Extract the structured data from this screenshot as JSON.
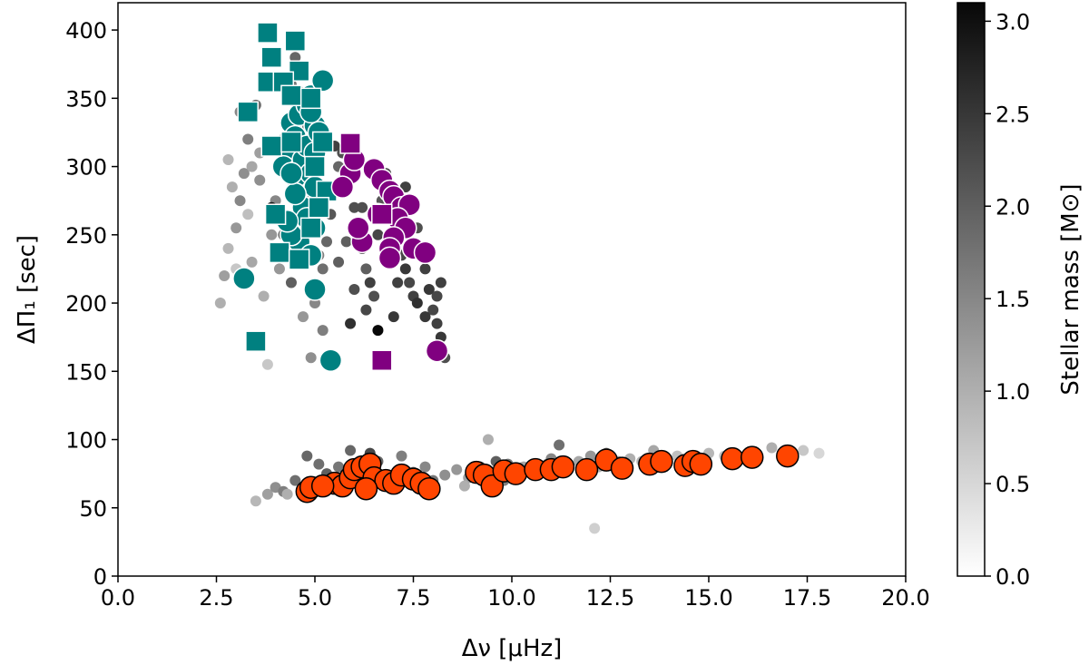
{
  "chart_data": {
    "type": "scatter",
    "xlabel": "Δν [μHz]",
    "ylabel": "ΔΠ₁ [sec]",
    "xlim": [
      0,
      20
    ],
    "ylim": [
      0,
      420
    ],
    "xticks": [
      0.0,
      2.5,
      5.0,
      7.5,
      10.0,
      12.5,
      15.0,
      17.5,
      20.0
    ],
    "xtick_labels": [
      "0.0",
      "2.5",
      "5.0",
      "7.5",
      "10.0",
      "12.5",
      "15.0",
      "17.5",
      "20.0"
    ],
    "yticks": [
      0,
      50,
      100,
      150,
      200,
      250,
      300,
      350,
      400
    ],
    "ytick_labels": [
      "0",
      "50",
      "100",
      "150",
      "200",
      "250",
      "300",
      "350",
      "400"
    ],
    "grid": false,
    "colorbar": {
      "label": "Stellar mass [M⊙]",
      "range": [
        0.0,
        3.1
      ],
      "ticks": [
        0.0,
        0.5,
        1.0,
        1.5,
        2.0,
        2.5,
        3.0
      ],
      "tick_labels": [
        "0.0",
        "0.5",
        "1.0",
        "1.5",
        "2.0",
        "2.5",
        "3.0"
      ],
      "colormap": "Greys"
    },
    "series": [
      {
        "marker": "circle-small",
        "color_by": "mass",
        "points": [
          [
            2.6,
            200,
            1.0
          ],
          [
            2.7,
            220,
            1.2
          ],
          [
            2.8,
            240,
            0.9
          ],
          [
            3.0,
            255,
            1.3
          ],
          [
            3.1,
            275,
            1.5
          ],
          [
            3.2,
            295,
            1.4
          ],
          [
            3.3,
            320,
            1.6
          ],
          [
            3.5,
            345,
            1.8
          ],
          [
            3.6,
            310,
            1.2
          ],
          [
            3.4,
            230,
            1.1
          ],
          [
            3.7,
            205,
            1.0
          ],
          [
            3.8,
            155,
            0.7
          ],
          [
            3.9,
            250,
            1.3
          ],
          [
            4.0,
            275,
            1.5
          ],
          [
            4.1,
            300,
            1.4
          ],
          [
            4.2,
            320,
            1.6
          ],
          [
            4.3,
            335,
            1.2
          ],
          [
            4.4,
            360,
            1.7
          ],
          [
            4.5,
            380,
            1.9
          ],
          [
            4.6,
            355,
            1.5
          ],
          [
            4.7,
            330,
            1.6
          ],
          [
            4.8,
            300,
            1.8
          ],
          [
            4.9,
            275,
            2.0
          ],
          [
            5.0,
            255,
            1.7
          ],
          [
            5.1,
            235,
            1.6
          ],
          [
            5.2,
            225,
            1.8
          ],
          [
            5.3,
            245,
            1.9
          ],
          [
            5.4,
            265,
            2.1
          ],
          [
            5.5,
            285,
            2.0
          ],
          [
            5.6,
            300,
            1.9
          ],
          [
            5.7,
            310,
            2.2
          ],
          [
            5.8,
            320,
            2.1
          ],
          [
            5.9,
            290,
            2.3
          ],
          [
            6.0,
            270,
            2.2
          ],
          [
            6.1,
            255,
            2.1
          ],
          [
            6.2,
            240,
            2.3
          ],
          [
            6.3,
            225,
            2.0
          ],
          [
            6.4,
            215,
            2.4
          ],
          [
            6.5,
            205,
            2.2
          ],
          [
            6.6,
            250,
            2.3
          ],
          [
            6.7,
            275,
            2.1
          ],
          [
            6.8,
            295,
            2.2
          ],
          [
            6.9,
            285,
            2.3
          ],
          [
            7.0,
            265,
            2.4
          ],
          [
            7.1,
            250,
            2.2
          ],
          [
            7.2,
            235,
            2.3
          ],
          [
            7.3,
            225,
            2.5
          ],
          [
            7.4,
            215,
            2.3
          ],
          [
            7.5,
            205,
            2.4
          ],
          [
            7.6,
            255,
            2.2
          ],
          [
            7.7,
            240,
            2.3
          ],
          [
            7.8,
            225,
            2.4
          ],
          [
            7.9,
            210,
            2.5
          ],
          [
            8.0,
            195,
            2.3
          ],
          [
            8.1,
            185,
            2.4
          ],
          [
            8.2,
            175,
            2.5
          ],
          [
            8.3,
            160,
            2.2
          ],
          [
            7.3,
            285,
            2.4
          ],
          [
            6.6,
            300,
            2.1
          ],
          [
            5.2,
            180,
            1.6
          ],
          [
            4.9,
            160,
            1.4
          ],
          [
            5.9,
            185,
            2.6
          ],
          [
            4.4,
            215,
            2.0
          ],
          [
            3.9,
            270,
            2.9
          ],
          [
            6.6,
            180,
            3.1
          ],
          [
            7.0,
            190,
            2.5
          ],
          [
            7.6,
            200,
            2.6
          ],
          [
            5.5,
            315,
            2.4
          ],
          [
            6.3,
            195,
            2.3
          ],
          [
            4.2,
            250,
            1.7
          ],
          [
            3.3,
            265,
            0.8
          ],
          [
            3.0,
            225,
            0.7
          ],
          [
            2.9,
            285,
            1.0
          ],
          [
            3.6,
            290,
            1.4
          ],
          [
            4.1,
            225,
            1.3
          ],
          [
            5.6,
            230,
            2.0
          ],
          [
            6.0,
            210,
            2.2
          ],
          [
            7.1,
            215,
            2.4
          ],
          [
            7.8,
            190,
            2.5
          ],
          [
            8.1,
            205,
            2.3
          ],
          [
            2.8,
            305,
            0.9
          ],
          [
            3.4,
            300,
            1.1
          ],
          [
            5.0,
            200,
            1.5
          ],
          [
            4.7,
            190,
            1.3
          ],
          [
            6.8,
            230,
            2.4
          ],
          [
            7.4,
            240,
            2.5
          ],
          [
            8.2,
            215,
            2.4
          ],
          [
            3.1,
            340,
            1.5
          ],
          [
            5.8,
            245,
            2.0
          ],
          [
            6.2,
            270,
            2.2
          ]
        ]
      },
      {
        "marker": "circle-small",
        "color_by": "mass",
        "points": [
          [
            3.5,
            55,
            0.9
          ],
          [
            3.8,
            60,
            1.2
          ],
          [
            4.0,
            65,
            1.4
          ],
          [
            4.2,
            62,
            1.6
          ],
          [
            4.5,
            70,
            1.8
          ],
          [
            4.8,
            88,
            1.9
          ],
          [
            5.0,
            67,
            1.5
          ],
          [
            5.3,
            75,
            2.0
          ],
          [
            5.6,
            80,
            1.7
          ],
          [
            5.9,
            92,
            1.9
          ],
          [
            6.0,
            68,
            2.2
          ],
          [
            6.3,
            78,
            2.0
          ],
          [
            6.6,
            84,
            1.9
          ],
          [
            6.9,
            72,
            2.1
          ],
          [
            7.2,
            88,
            1.6
          ],
          [
            7.5,
            76,
            1.8
          ],
          [
            7.8,
            80,
            1.5
          ],
          [
            8.0,
            70,
            1.7
          ],
          [
            8.3,
            74,
            1.4
          ],
          [
            8.6,
            78,
            1.3
          ],
          [
            8.9,
            72,
            1.2
          ],
          [
            9.2,
            80,
            1.5
          ],
          [
            9.4,
            100,
            1.0
          ],
          [
            9.6,
            84,
            2.0
          ],
          [
            9.8,
            70,
            1.6
          ],
          [
            10.0,
            76,
            1.3
          ],
          [
            10.3,
            80,
            1.1
          ],
          [
            10.6,
            74,
            1.0
          ],
          [
            10.9,
            82,
            1.4
          ],
          [
            11.2,
            96,
            1.8
          ],
          [
            11.4,
            78,
            1.2
          ],
          [
            11.7,
            84,
            1.1
          ],
          [
            12.0,
            88,
            1.3
          ],
          [
            12.2,
            80,
            1.0
          ],
          [
            12.4,
            90,
            1.9
          ],
          [
            12.7,
            84,
            1.2
          ],
          [
            13.0,
            86,
            1.0
          ],
          [
            13.3,
            84,
            0.9
          ],
          [
            13.6,
            92,
            1.1
          ],
          [
            13.9,
            86,
            1.0
          ],
          [
            14.2,
            88,
            0.8
          ],
          [
            14.6,
            86,
            0.7
          ],
          [
            15.0,
            90,
            0.9
          ],
          [
            15.4,
            88,
            0.8
          ],
          [
            15.8,
            86,
            0.6
          ],
          [
            16.2,
            90,
            0.7
          ],
          [
            16.6,
            94,
            1.0
          ],
          [
            17.0,
            90,
            0.6
          ],
          [
            17.4,
            92,
            0.7
          ],
          [
            17.8,
            90,
            0.5
          ],
          [
            12.1,
            35,
            0.6
          ],
          [
            4.3,
            60,
            1.0
          ],
          [
            5.8,
            70,
            1.3
          ],
          [
            7.0,
            68,
            1.2
          ],
          [
            8.8,
            66,
            1.0
          ],
          [
            9.9,
            82,
            1.7
          ],
          [
            11.0,
            86,
            1.5
          ],
          [
            6.4,
            90,
            2.3
          ],
          [
            5.1,
            82,
            1.8
          ],
          [
            16.0,
            84,
            0.5
          ]
        ]
      },
      {
        "name": "",
        "marker": "circle",
        "color": "#008080",
        "points": [
          [
            3.2,
            218
          ],
          [
            4.4,
            332
          ],
          [
            4.5,
            322
          ],
          [
            4.6,
            338
          ],
          [
            4.8,
            345
          ],
          [
            4.9,
            352
          ],
          [
            4.3,
            310
          ],
          [
            4.2,
            300
          ],
          [
            4.6,
            298
          ],
          [
            4.7,
            305
          ],
          [
            4.8,
            315
          ],
          [
            5.0,
            330
          ],
          [
            5.1,
            325
          ],
          [
            5.2,
            363
          ],
          [
            4.5,
            292
          ],
          [
            4.9,
            295
          ],
          [
            5.0,
            285
          ],
          [
            4.7,
            270
          ],
          [
            4.8,
            262
          ],
          [
            5.0,
            255
          ],
          [
            4.6,
            245
          ],
          [
            4.4,
            250
          ],
          [
            4.9,
            235
          ],
          [
            5.0,
            210
          ],
          [
            5.4,
            158
          ],
          [
            4.5,
            280
          ],
          [
            4.3,
            260
          ],
          [
            4.9,
            340
          ],
          [
            5.0,
            310
          ],
          [
            4.4,
            295
          ]
        ]
      },
      {
        "name": "",
        "marker": "square",
        "color": "#008080",
        "points": [
          [
            3.8,
            398
          ],
          [
            4.5,
            392
          ],
          [
            3.9,
            380
          ],
          [
            4.6,
            370
          ],
          [
            3.8,
            362
          ],
          [
            4.2,
            362
          ],
          [
            4.4,
            352
          ],
          [
            3.3,
            340
          ],
          [
            3.9,
            315
          ],
          [
            4.4,
            318
          ],
          [
            5.2,
            318
          ],
          [
            5.3,
            282
          ],
          [
            5.1,
            270
          ],
          [
            4.0,
            265
          ],
          [
            4.9,
            255
          ],
          [
            4.1,
            237
          ],
          [
            4.6,
            232
          ],
          [
            3.5,
            172
          ],
          [
            4.9,
            350
          ],
          [
            5.0,
            300
          ]
        ]
      },
      {
        "name": "",
        "marker": "circle",
        "color": "#800080",
        "points": [
          [
            5.9,
            295
          ],
          [
            6.0,
            305
          ],
          [
            6.5,
            298
          ],
          [
            6.7,
            290
          ],
          [
            6.9,
            282
          ],
          [
            7.0,
            278
          ],
          [
            7.2,
            270
          ],
          [
            7.4,
            272
          ],
          [
            7.1,
            262
          ],
          [
            7.3,
            255
          ],
          [
            7.0,
            248
          ],
          [
            6.9,
            240
          ],
          [
            6.2,
            245
          ],
          [
            6.1,
            255
          ],
          [
            6.6,
            265
          ],
          [
            7.5,
            240
          ],
          [
            7.8,
            237
          ],
          [
            6.9,
            233
          ],
          [
            5.7,
            285
          ],
          [
            8.1,
            165
          ]
        ]
      },
      {
        "name": "",
        "marker": "square",
        "color": "#800080",
        "points": [
          [
            5.9,
            317
          ],
          [
            6.7,
            265
          ],
          [
            6.7,
            158
          ]
        ]
      },
      {
        "name": "",
        "marker": "circle",
        "color": "#ff4500",
        "points": [
          [
            4.8,
            62
          ],
          [
            4.9,
            65
          ],
          [
            5.5,
            68
          ],
          [
            5.7,
            66
          ],
          [
            5.9,
            72
          ],
          [
            6.0,
            78
          ],
          [
            6.2,
            80
          ],
          [
            6.4,
            82
          ],
          [
            6.5,
            72
          ],
          [
            6.8,
            70
          ],
          [
            7.0,
            68
          ],
          [
            7.2,
            74
          ],
          [
            7.5,
            71
          ],
          [
            7.7,
            68
          ],
          [
            7.9,
            64
          ],
          [
            9.1,
            76
          ],
          [
            9.3,
            74
          ],
          [
            9.5,
            66
          ],
          [
            9.8,
            77
          ],
          [
            10.1,
            75
          ],
          [
            10.6,
            78
          ],
          [
            11.0,
            78
          ],
          [
            11.3,
            80
          ],
          [
            11.9,
            78
          ],
          [
            12.4,
            85
          ],
          [
            12.8,
            79
          ],
          [
            13.5,
            82
          ],
          [
            13.8,
            84
          ],
          [
            14.4,
            81
          ],
          [
            14.6,
            84
          ],
          [
            14.8,
            82
          ],
          [
            15.6,
            86
          ],
          [
            16.1,
            87
          ],
          [
            17.0,
            88
          ],
          [
            5.2,
            66
          ],
          [
            6.3,
            64
          ]
        ]
      }
    ]
  }
}
